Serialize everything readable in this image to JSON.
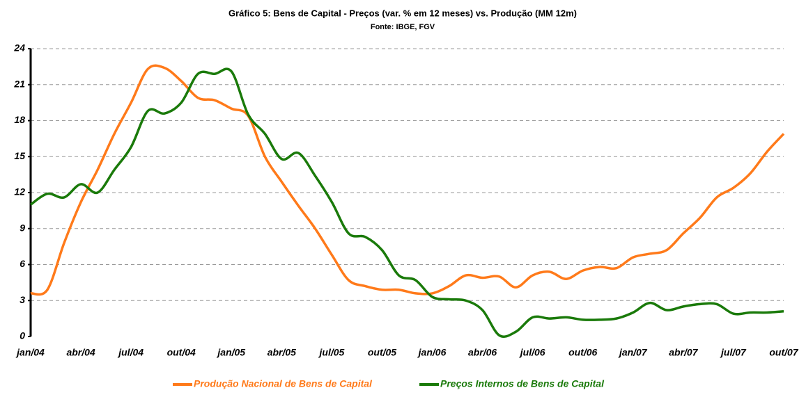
{
  "chart_data": {
    "type": "line",
    "title": "Gráfico 5: Bens de Capital - Preços (var. % em 12 meses) vs. Produção (MM 12m)",
    "subtitle": "Fonte: IBGE, FGV",
    "categories": [
      "jan/04",
      null,
      null,
      "abr/04",
      null,
      null,
      "jul/04",
      null,
      null,
      "out/04",
      null,
      null,
      "jan/05",
      null,
      null,
      "abr/05",
      null,
      null,
      "jul/05",
      null,
      null,
      "out/05",
      null,
      null,
      "jan/06",
      null,
      null,
      "abr/06",
      null,
      null,
      "jul/06",
      null,
      null,
      "out/06",
      null,
      null,
      "jan/07",
      null,
      null,
      "abr/07",
      null,
      null,
      "jul/07",
      null,
      null,
      "out/07"
    ],
    "series": [
      {
        "name": "Produção Nacional de Bens de Capital",
        "color": "#ff7a1a",
        "values": [
          3.6,
          3.9,
          7.8,
          11.2,
          13.9,
          16.9,
          19.5,
          22.3,
          22.4,
          21.3,
          19.9,
          19.7,
          19.0,
          18.4,
          15.0,
          12.9,
          10.9,
          9.0,
          6.8,
          4.7,
          4.2,
          3.9,
          3.9,
          3.6,
          3.6,
          4.2,
          5.1,
          4.9,
          5.0,
          4.1,
          5.1,
          5.4,
          4.8,
          5.5,
          5.8,
          5.7,
          6.6,
          6.9,
          7.2,
          8.6,
          9.9,
          11.6,
          12.4,
          13.6,
          15.4,
          16.9
        ]
      },
      {
        "name": "Preços Internos de Bens de Capital",
        "color": "#1a7a0a",
        "values": [
          11.0,
          11.9,
          11.6,
          12.7,
          12.0,
          13.9,
          15.8,
          18.8,
          18.6,
          19.5,
          21.9,
          21.9,
          22.1,
          18.5,
          16.9,
          14.8,
          15.3,
          13.4,
          11.2,
          8.6,
          8.3,
          7.2,
          5.1,
          4.7,
          3.3,
          3.1,
          3.0,
          2.2,
          0.1,
          0.4,
          1.6,
          1.5,
          1.6,
          1.4,
          1.4,
          1.5,
          2.0,
          2.8,
          2.2,
          2.5,
          2.7,
          2.7,
          1.9,
          2.0,
          2.0,
          2.1
        ]
      }
    ],
    "ylim": [
      0,
      24
    ],
    "yticks": [
      0,
      3,
      6,
      9,
      12,
      15,
      18,
      21,
      24
    ],
    "grid": true,
    "legend": "bottom"
  }
}
